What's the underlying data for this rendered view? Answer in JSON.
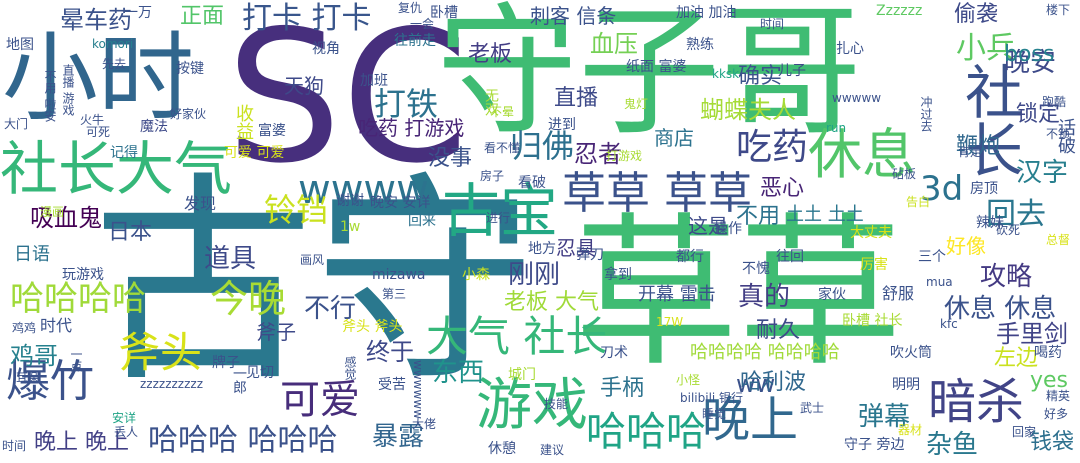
{
  "words": [
    {
      "text": "古守",
      "color": "#2a788e"
    },
    {
      "text": "SC",
      "color": "#472f7d"
    },
    {
      "text": "草草",
      "color": "#3fbc73"
    },
    {
      "text": "守子哥",
      "color": "#3fbc73"
    },
    {
      "text": "小时",
      "color": "#31668d"
    },
    {
      "text": "社长大气",
      "color": "#35b779"
    },
    {
      "text": "古宝",
      "color": "#22a884"
    },
    {
      "text": "休息",
      "color": "#52c569"
    },
    {
      "text": "草草 草草",
      "color": "#3b528b"
    },
    {
      "text": "社长",
      "color": "#3b528b"
    },
    {
      "text": "wwww",
      "color": "#2c738e"
    },
    {
      "text": "游戏",
      "color": "#35b779"
    },
    {
      "text": "晚上",
      "color": "#31688e"
    },
    {
      "text": "暗杀",
      "color": "#414487"
    },
    {
      "text": "大气 社长",
      "color": "#35b779"
    },
    {
      "text": "哈哈哈哈",
      "color": "#a0da39"
    },
    {
      "text": "斧头",
      "color": "#d8e219"
    },
    {
      "text": "今晚",
      "color": "#a8db34"
    },
    {
      "text": "哈哈哈",
      "color": "#20a486"
    },
    {
      "text": "爆竹",
      "color": "#3b528b"
    },
    {
      "text": "可爱",
      "color": "#472d7b"
    },
    {
      "text": "吃药",
      "color": "#3e4989"
    },
    {
      "text": "3d",
      "color": "#2c728e"
    },
    {
      "text": "铃铛",
      "color": "#cae11f"
    },
    {
      "text": "打卡 打卡",
      "color": "#39568c"
    },
    {
      "text": "打铁",
      "color": "#2c728e"
    },
    {
      "text": "归佛",
      "color": "#2d708e"
    },
    {
      "text": "小兵",
      "color": "#5ec962"
    },
    {
      "text": "晚安",
      "color": "#3e4a89"
    },
    {
      "text": "boss",
      "color": "#26828e"
    },
    {
      "text": "回去",
      "color": "#2a768e"
    },
    {
      "text": "汉字",
      "color": "#277f8e"
    },
    {
      "text": "攻略",
      "color": "#443a83"
    },
    {
      "text": "休息 休息",
      "color": "#3b528b"
    },
    {
      "text": "手里剑",
      "color": "#404387"
    },
    {
      "text": "哈哈哈 哈哈哈",
      "color": "#3b528b"
    },
    {
      "text": "晚上 晚上",
      "color": "#424086"
    },
    {
      "text": "暴露",
      "color": "#32658e"
    },
    {
      "text": "东西",
      "color": "#20938c"
    },
    {
      "text": "不行",
      "color": "#3b528b"
    },
    {
      "text": "终于",
      "color": "#3e4989"
    },
    {
      "text": "刚刚",
      "color": "#3e4a89"
    },
    {
      "text": "真的",
      "color": "#433e85"
    },
    {
      "text": "老板 大气",
      "color": "#a0da39"
    },
    {
      "text": "道具",
      "color": "#3e4a89"
    },
    {
      "text": "吸血鬼",
      "color": "#440154"
    },
    {
      "text": "日本",
      "color": "#3b528b"
    },
    {
      "text": "鸡哥",
      "color": "#26818e"
    },
    {
      "text": "弹幕",
      "color": "#2a768e"
    },
    {
      "text": "杂鱼",
      "color": "#2a788e"
    },
    {
      "text": "钱袋",
      "color": "#2d708e"
    },
    {
      "text": "直播",
      "color": "#3e4a89"
    },
    {
      "text": "忍者",
      "color": "#482576"
    },
    {
      "text": "血压",
      "color": "#75d054"
    },
    {
      "text": "蝴蝶夫人",
      "color": "#a5db36"
    },
    {
      "text": "确实",
      "color": "#3b528b"
    },
    {
      "text": "老板",
      "color": "#433e85"
    },
    {
      "text": "刺客 信条",
      "color": "#3b528b"
    },
    {
      "text": "正面",
      "color": "#52c569"
    },
    {
      "text": "晕车药",
      "color": "#3b528b"
    },
    {
      "text": "吃药 打游戏",
      "color": "#482576"
    },
    {
      "text": "没事",
      "color": "#3b528b"
    },
    {
      "text": "天狗",
      "color": "#3e4989"
    },
    {
      "text": "不用",
      "color": "#2c728e"
    },
    {
      "text": "手柄",
      "color": "#2c728e"
    },
    {
      "text": "ww",
      "color": "#3b528b"
    },
    {
      "text": "哈利波",
      "color": "#31688e"
    },
    {
      "text": "开幕 雷击",
      "color": "#3b528b"
    },
    {
      "text": "哈哈哈哈 哈哈哈哈",
      "color": "#a0da39"
    },
    {
      "text": "耐久",
      "color": "#3e4a89"
    },
    {
      "text": "左边",
      "color": "#cae11f"
    },
    {
      "text": "好像",
      "color": "#fde725"
    },
    {
      "text": "恶心",
      "color": "#482576"
    },
    {
      "text": "锁定",
      "color": "#3e4989"
    },
    {
      "text": "偷袭",
      "color": "#3e4a89"
    },
    {
      "text": "鞭炮",
      "color": "#31688e"
    },
    {
      "text": "斧子",
      "color": "#3e4a89"
    },
    {
      "text": "忍具",
      "color": "#433e85"
    },
    {
      "text": "这是",
      "color": "#3e4a89"
    },
    {
      "text": "商店",
      "color": "#2c728e"
    },
    {
      "text": "土土 土土",
      "color": "#2a768e"
    },
    {
      "text": "yes",
      "color": "#5ec962"
    },
    {
      "text": "无双",
      "color": "#a8db34"
    },
    {
      "text": "游戏",
      "color": "#5ec962"
    },
    {
      "text": "地图",
      "color": "#3b528b"
    },
    {
      "text": "一万",
      "color": "#3b528b"
    },
    {
      "text": "komori",
      "color": "#277f8e"
    },
    {
      "text": "按键",
      "color": "#3b528b"
    },
    {
      "text": "熟练",
      "color": "#3b528b"
    },
    {
      "text": "纸面 富婆",
      "color": "#3b528b"
    },
    {
      "text": "儿子",
      "color": "#3e4989"
    },
    {
      "text": "卧槽",
      "color": "#3b528b"
    },
    {
      "text": "加油 加油",
      "color": "#3b528b"
    },
    {
      "text": "时间",
      "color": "#3b528b"
    },
    {
      "text": "Zzzzzz",
      "color": "#5ec962"
    },
    {
      "text": "楼下",
      "color": "#3b528b"
    },
    {
      "text": "扎心",
      "color": "#3b528b"
    },
    {
      "text": "先去",
      "color": "#3b528b"
    },
    {
      "text": "视角",
      "color": "#3b528b"
    },
    {
      "text": "往前走",
      "color": "#2c728e"
    },
    {
      "text": "加班",
      "color": "#3b528b"
    },
    {
      "text": "富婆",
      "color": "#3b528b"
    },
    {
      "text": "收益",
      "color": "#cae11f"
    },
    {
      "text": "进到",
      "color": "#3b528b"
    },
    {
      "text": "看不懂",
      "color": "#3b528b"
    },
    {
      "text": "不晕",
      "color": "#a8db34"
    },
    {
      "text": "可爱 可爱",
      "color": "#d8e219"
    },
    {
      "text": "记得",
      "color": "#2c728e"
    },
    {
      "text": "魔法",
      "color": "#3e4a89"
    },
    {
      "text": "好家伙",
      "color": "#3b528b"
    },
    {
      "text": "房子",
      "color": "#3b528b"
    },
    {
      "text": "看破",
      "color": "#3b528b"
    },
    {
      "text": "谢谢",
      "color": "#3b528b"
    },
    {
      "text": "晚安 安详",
      "color": "#3b528b"
    },
    {
      "text": "回来",
      "color": "#2c728e"
    },
    {
      "text": "1w",
      "color": "#a8db34"
    },
    {
      "text": "发现",
      "color": "#3b528b"
    },
    {
      "text": "日语",
      "color": "#2c728e"
    },
    {
      "text": "玩游戏",
      "color": "#3b528b"
    },
    {
      "text": "地方",
      "color": "#3b528b"
    },
    {
      "text": "mizawa",
      "color": "#3b528b"
    },
    {
      "text": "小森",
      "color": "#cae11f"
    },
    {
      "text": "弹刀",
      "color": "#3b528b"
    },
    {
      "text": "拿到",
      "color": "#3b528b"
    },
    {
      "text": "都行",
      "color": "#3b528b"
    },
    {
      "text": "不愧",
      "color": "#3b528b"
    },
    {
      "text": "往回",
      "color": "#3b528b"
    },
    {
      "text": "三个",
      "color": "#3b528b"
    },
    {
      "text": "厉害",
      "color": "#d8e219"
    },
    {
      "text": "大丈夫",
      "color": "#d8e219"
    },
    {
      "text": "家伙",
      "color": "#3b528b"
    },
    {
      "text": "舒服",
      "color": "#3b528b"
    },
    {
      "text": "操作",
      "color": "#3b528b"
    },
    {
      "text": "卧槽 社长",
      "color": "#a8db34"
    },
    {
      "text": "17W",
      "color": "#d8e219"
    },
    {
      "text": "时代",
      "color": "#3b528b"
    },
    {
      "text": "鸡鸡",
      "color": "#3b528b"
    },
    {
      "text": "斧头 斧头",
      "color": "#d8e219"
    },
    {
      "text": "第三",
      "color": "#3b528b"
    },
    {
      "text": "刀术",
      "color": "#3b528b"
    },
    {
      "text": "吹火筒",
      "color": "#3b528b"
    },
    {
      "text": "喝药",
      "color": "#3b528b"
    },
    {
      "text": "耳朵",
      "color": "#3b528b"
    },
    {
      "text": "zzzzzzzzzz",
      "color": "#3b528b"
    },
    {
      "text": "见切",
      "color": "#3b528b"
    },
    {
      "text": "受苦",
      "color": "#3b528b"
    },
    {
      "text": "城门",
      "color": "#a8db34"
    },
    {
      "text": "明明",
      "color": "#3b528b"
    },
    {
      "text": "安详",
      "color": "#20a486"
    },
    {
      "text": "技能",
      "color": "#3b528b"
    },
    {
      "text": "bilibili 银行",
      "color": "#3b528b"
    },
    {
      "text": "睡觉",
      "color": "#3b528b"
    },
    {
      "text": "武士",
      "color": "#3b528b"
    },
    {
      "text": "好多",
      "color": "#3b528b"
    },
    {
      "text": "时间",
      "color": "#3b528b"
    },
    {
      "text": "休憩",
      "color": "#3b528b"
    },
    {
      "text": "建议",
      "color": "#3b528b"
    },
    {
      "text": "守子 旁边",
      "color": "#3b528b"
    },
    {
      "text": "回家",
      "color": "#3b528b"
    },
    {
      "text": "精英",
      "color": "#3b528b"
    },
    {
      "text": "器材",
      "color": "#d8e219"
    },
    {
      "text": "kksk",
      "color": "#20a486"
    },
    {
      "text": "run",
      "color": "#20a486"
    },
    {
      "text": "wwwww",
      "color": "#3b528b"
    },
    {
      "text": "打游戏",
      "color": "#a8db34"
    },
    {
      "text": "丢人",
      "color": "#3b528b"
    },
    {
      "text": "告白",
      "color": "#cae11f"
    },
    {
      "text": "砍死",
      "color": "#3b528b"
    },
    {
      "text": "总督",
      "color": "#d8e219"
    },
    {
      "text": "不锁",
      "color": "#3b528b"
    },
    {
      "text": "肯定",
      "color": "#3b528b"
    },
    {
      "text": "跑酷",
      "color": "#3b528b"
    },
    {
      "text": "冲过去",
      "color": "#3b528b"
    },
    {
      "text": "话破",
      "color": "#3b528b"
    },
    {
      "text": "房顶",
      "color": "#3b528b"
    },
    {
      "text": "辣妹",
      "color": "#3b528b"
    },
    {
      "text": "kfc",
      "color": "#3b528b"
    },
    {
      "text": "一郎",
      "color": "#3b528b"
    },
    {
      "text": "一点",
      "color": "#3b528b"
    },
    {
      "text": "牌子",
      "color": "#3b528b"
    },
    {
      "text": "感觉",
      "color": "#3b528b"
    },
    {
      "text": "wwwwww",
      "color": "#3b528b"
    },
    {
      "text": "复仇",
      "color": "#3b528b"
    },
    {
      "text": "一会",
      "color": "#3b528b"
    },
    {
      "text": "大门",
      "color": "#3b528b"
    },
    {
      "text": "不用 啦安",
      "color": "#3b528b"
    },
    {
      "text": "直播 游戏",
      "color": "#3b528b"
    },
    {
      "text": "可死",
      "color": "#3b528b"
    },
    {
      "text": "火牛",
      "color": "#3b528b"
    },
    {
      "text": "谢谢",
      "color": "#3b528b"
    },
    {
      "text": "鬼灯",
      "color": "#a8db34"
    },
    {
      "text": "漫画",
      "color": "#a8db34"
    },
    {
      "text": "小怪",
      "color": "#a8db34"
    },
    {
      "text": "大佬",
      "color": "#3b528b"
    },
    {
      "text": "画风",
      "color": "#3b528b"
    },
    {
      "text": "mua",
      "color": "#3b528b"
    },
    {
      "text": "进行",
      "color": "#3b528b"
    },
    {
      "text": "砧板",
      "color": "#3b528b"
    },
    {
      "text": "惊醒",
      "color": "#3b528b"
    },
    {
      "text": "画质",
      "color": "#3b528b"
    },
    {
      "text": "宣告",
      "color": "#3b528b"
    },
    {
      "text": "刺客",
      "color": "#3b528b"
    },
    {
      "text": "凌晨",
      "color": "#3b528b"
    },
    {
      "text": "满脑",
      "color": "#3b528b"
    },
    {
      "text": "好慢",
      "color": "#3b528b"
    },
    {
      "text": "雷击",
      "color": "#3b528b"
    },
    {
      "text": "到处",
      "color": "#3b528b"
    },
    {
      "text": "没有",
      "color": "#3b528b"
    },
    {
      "text": "还有",
      "color": "#3b528b"
    }
  ]
}
